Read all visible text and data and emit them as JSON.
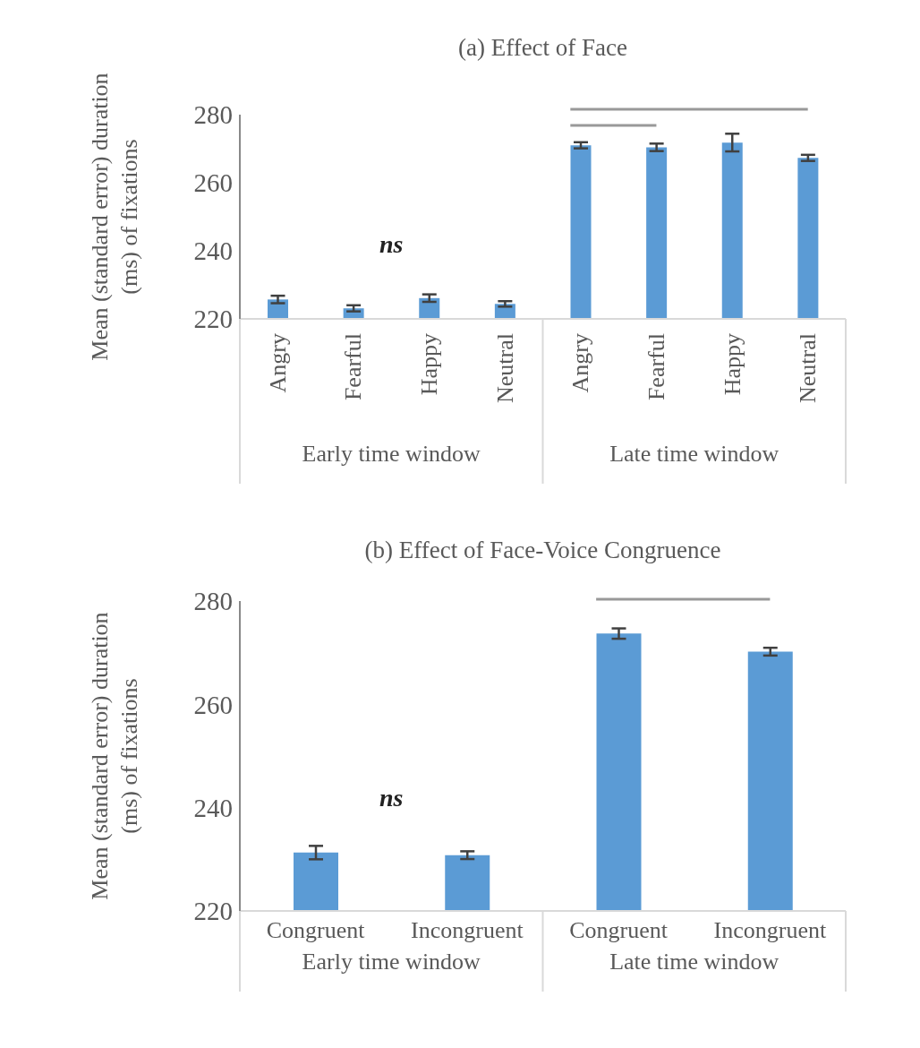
{
  "chart_data": [
    {
      "type": "bar",
      "title": "(a) Effect of Face",
      "ylabel": "Mean (standard error) duration (ms) of fixations",
      "categories": [
        "Angry",
        "Fearful",
        "Happy",
        "Neutral",
        "Angry",
        "Fearful",
        "Happy",
        "Neutral"
      ],
      "values": [
        225.7,
        223.1,
        226.1,
        224.4,
        271.0,
        270.4,
        271.8,
        267.3
      ],
      "errors": [
        1.1,
        0.9,
        1.1,
        0.8,
        0.9,
        1.1,
        2.6,
        0.9
      ],
      "color": "#5b9bd5",
      "ylim": [
        220,
        280
      ],
      "yticks": [
        220,
        240,
        260,
        280
      ],
      "annotations": [
        "ns",
        "Early time window",
        "Late time window"
      ]
    },
    {
      "type": "bar",
      "title": "(b) Effect of Face-Voice Congruence",
      "ylabel": "Mean (standard error) duration (ms) of fixations",
      "categories": [
        "Congruent",
        "Incongruent",
        "Congruent",
        "Incongruent"
      ],
      "values": [
        231.3,
        230.8,
        273.7,
        270.2
      ],
      "errors": [
        1.3,
        0.75,
        1.0,
        0.75
      ],
      "color": "#5b9bd5",
      "ylim": [
        220,
        280
      ],
      "yticks": [
        220,
        240,
        260,
        280
      ],
      "annotations": [
        "ns",
        "Early time window",
        "Late time window"
      ]
    }
  ]
}
